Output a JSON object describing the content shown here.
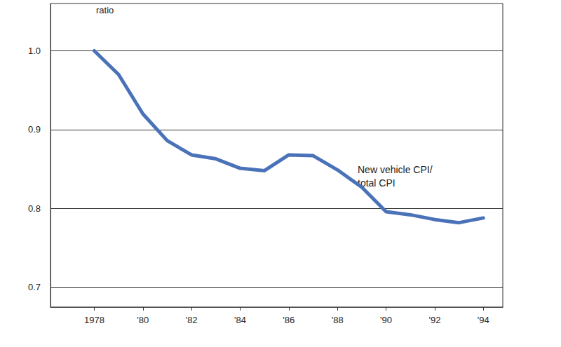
{
  "chart_data": {
    "type": "line",
    "y_label": "ratio",
    "annotation": "New vehicle CPI/\ntotal CPI",
    "x": [
      1978,
      1979,
      1980,
      1981,
      1982,
      1983,
      1984,
      1985,
      1986,
      1987,
      1988,
      1989,
      1990,
      1991,
      1992,
      1993,
      1994
    ],
    "series": [
      {
        "name": "New vehicle CPI/\ntotal CPI",
        "color": "#4a72b8",
        "values": [
          1.0,
          0.97,
          0.92,
          0.886,
          0.868,
          0.863,
          0.851,
          0.848,
          0.868,
          0.867,
          0.849,
          0.827,
          0.796,
          0.792,
          0.786,
          0.782,
          0.788
        ]
      }
    ],
    "xlim": [
      1976.2,
      1994.8
    ],
    "xticks": [
      {
        "value": 1978,
        "label": "1978"
      },
      {
        "value": 1980,
        "label": "'80"
      },
      {
        "value": 1982,
        "label": "'82"
      },
      {
        "value": 1984,
        "label": "'84"
      },
      {
        "value": 1986,
        "label": "'86"
      },
      {
        "value": 1988,
        "label": "'88"
      },
      {
        "value": 1990,
        "label": "'90"
      },
      {
        "value": 1992,
        "label": "'92"
      },
      {
        "value": 1994,
        "label": "'94"
      }
    ],
    "ylim": [
      0.675,
      1.06
    ],
    "yticks": [
      0.7,
      0.8,
      0.9,
      {
        "value": 1,
        "label": "1.0"
      }
    ],
    "grid": true
  }
}
